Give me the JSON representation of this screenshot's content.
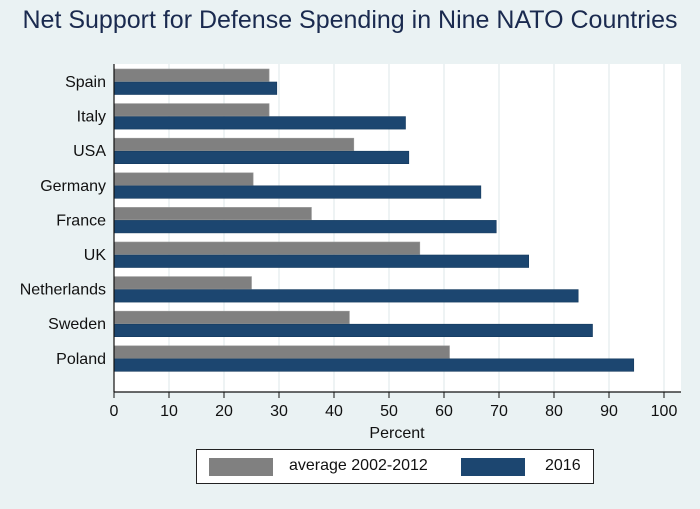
{
  "chart_data": {
    "type": "bar",
    "orientation": "horizontal",
    "title": "Net Support for Defense Spending in Nine NATO Countries",
    "xlabel": "Percent",
    "ylabel": "",
    "xlim": [
      0,
      100
    ],
    "xticks": [
      0,
      10,
      20,
      30,
      40,
      50,
      60,
      70,
      80,
      90,
      100
    ],
    "grid": true,
    "legend_position": "bottom",
    "categories": [
      "Spain",
      "Italy",
      "USA",
      "Germany",
      "France",
      "UK",
      "Netherlands",
      "Sweden",
      "Poland"
    ],
    "series": [
      {
        "name": "average 2002-2012",
        "color": "#808080",
        "values": [
          28.2,
          28.2,
          43.6,
          25.3,
          35.9,
          55.6,
          25.0,
          42.8,
          61.0
        ]
      },
      {
        "name": "2016",
        "color": "#1c4670",
        "values": [
          29.6,
          53.0,
          53.6,
          66.7,
          69.5,
          75.4,
          84.4,
          87.0,
          94.5
        ]
      }
    ]
  }
}
